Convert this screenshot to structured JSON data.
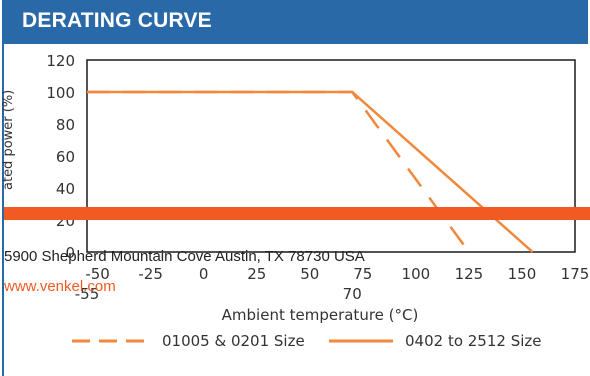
{
  "header": {
    "title": "DERATING CURVE"
  },
  "chart_data": {
    "type": "line",
    "title": "",
    "xlabel": "Ambient temperature (°C)",
    "ylabel": "Rated power (%)",
    "ylabel_visible": "ated power (%)",
    "xlim": [
      -55,
      175
    ],
    "ylim": [
      0,
      120
    ],
    "x_ticks": [
      "-50",
      "-25",
      "0",
      "25",
      "50",
      "75",
      "100",
      "125",
      "150",
      "175"
    ],
    "x_tick_values": [
      -50,
      -25,
      0,
      25,
      50,
      75,
      100,
      125,
      150,
      175
    ],
    "x_extra_ticks": [
      {
        "label": "-55",
        "value": -55
      },
      {
        "label": "70",
        "value": 70
      }
    ],
    "y_ticks": [
      "120",
      "100",
      "80",
      "60",
      "40",
      "20",
      "0"
    ],
    "y_tick_values": [
      120,
      100,
      80,
      60,
      40,
      20,
      0
    ],
    "grid": false,
    "legend_position": "bottom",
    "series": [
      {
        "name": "01005 & 0201 Size",
        "style": "dashed",
        "color": "#f0883e",
        "x": [
          -55,
          70,
          125
        ],
        "y": [
          100,
          100,
          0
        ]
      },
      {
        "name": "0402 to 2512 Size",
        "style": "solid",
        "color": "#f0883e",
        "x": [
          -55,
          70,
          155
        ],
        "y": [
          100,
          100,
          0
        ]
      }
    ]
  },
  "footer": {
    "address": "5900 Shepherd Mountain Cove Austin, TX 78730 USA",
    "website": "www.venkel.com"
  },
  "colors": {
    "header_bg": "#2a69a8",
    "band": "#f15a22",
    "curve": "#f0883e"
  }
}
